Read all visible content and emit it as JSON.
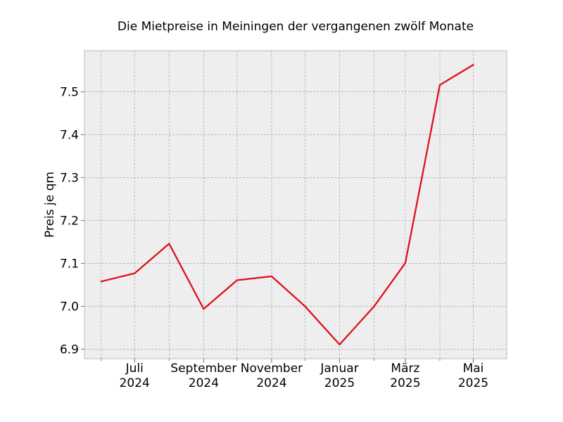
{
  "chart_data": {
    "type": "line",
    "title": "Die Mietpreise in Meiningen der vergangenen zwölf Monate",
    "xlabel": "",
    "ylabel": "Preis je qm",
    "x": [
      "2024-06",
      "2024-07",
      "2024-08",
      "2024-09",
      "2024-10",
      "2024-11",
      "2024-12",
      "2025-01",
      "2025-02",
      "2025-03",
      "2025-04",
      "2025-05"
    ],
    "series": [
      {
        "values": [
          7.058,
          7.077,
          7.146,
          6.994,
          7.061,
          7.07,
          7.0,
          6.911,
          7.0,
          7.101,
          7.516,
          7.563
        ],
        "color": "#e0101e"
      }
    ],
    "xticks": [
      {
        "x": "2024-07",
        "label": [
          "Juli",
          "2024"
        ]
      },
      {
        "x": "2024-09",
        "label": [
          "September",
          "2024"
        ]
      },
      {
        "x": "2024-11",
        "label": [
          "November",
          "2024"
        ]
      },
      {
        "x": "2025-01",
        "label": [
          "Januar",
          "2025"
        ]
      },
      {
        "x": "2025-03",
        "label": [
          "März",
          "2025"
        ]
      },
      {
        "x": "2025-05",
        "label": [
          "Mai",
          "2025"
        ]
      }
    ],
    "yticks": [
      "6.9",
      "7.0",
      "7.1",
      "7.2",
      "7.3",
      "7.4",
      "7.5"
    ],
    "ylim": [
      6.878,
      7.596
    ],
    "xlim": [
      "2024-05-17",
      "2025-05-31"
    ],
    "grid": true,
    "colors": {
      "plot_background": "#eeeeee",
      "grid": "#b0b0b0",
      "frame": "#bcbcbc"
    }
  }
}
